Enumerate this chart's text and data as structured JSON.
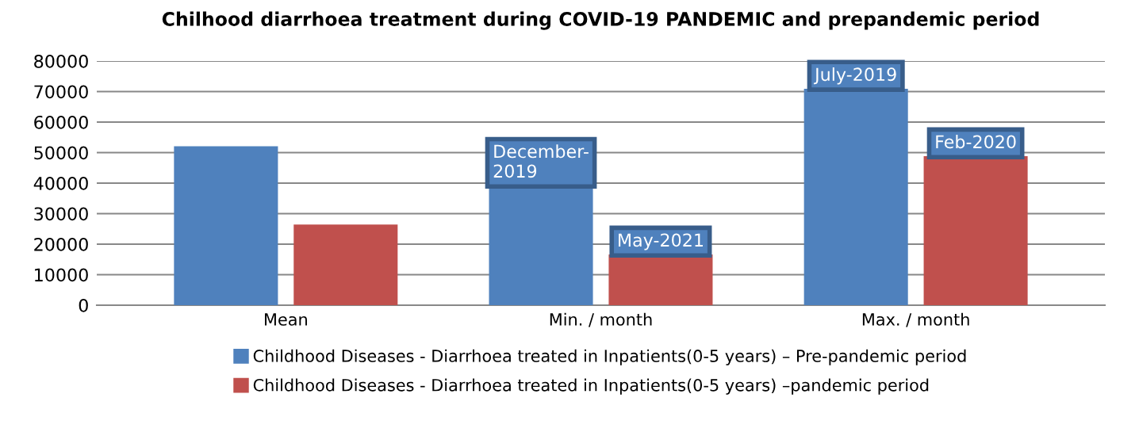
{
  "chart_data": {
    "type": "bar",
    "title": "Chilhood diarrhoea treatment during COVID-19 PANDEMIC and prepandemic period",
    "categories": [
      "Mean",
      "Min. / month",
      "Max. / month"
    ],
    "series": [
      {
        "name": "Childhood Diseases - Diarrhoea treated in Inpatients(0-5 years) – Pre-pandemic period",
        "color": "#4f81bd",
        "values": [
          52100,
          39200,
          70900
        ]
      },
      {
        "name": "Childhood Diseases - Diarrhoea treated in Inpatients(0-5 years) –pandemic period",
        "color": "#c0504d",
        "values": [
          26400,
          16600,
          48800
        ]
      }
    ],
    "annotations": [
      "December-\n2019",
      {
        "text": "May-2021",
        "x": "Min. / month",
        "y": 16600
      },
      "July-2019",
      {
        "text": "Feb-2020",
        "x": "Max. / month",
        "y": 48800
      }
    ],
    "ylim": [
      0,
      80000
    ],
    "yticks": [
      0,
      10000,
      20000,
      30000,
      40000,
      50000,
      60000,
      70000,
      80000
    ],
    "grid": "y",
    "legend": "bottom"
  }
}
